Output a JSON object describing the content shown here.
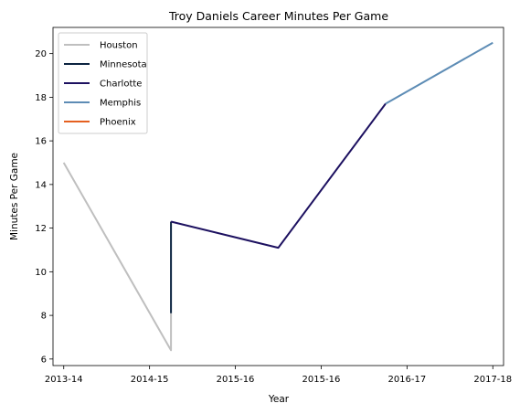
{
  "chart_data": {
    "type": "line",
    "title": "Troy Daniels Career Minutes Per Game",
    "xlabel": "Year",
    "ylabel": "Minutes Per Game",
    "x_tick_labels": [
      "2013-14",
      "2014-15",
      "2015-16",
      "2015-16",
      "2016-17",
      "2017-18"
    ],
    "xlim": [
      -0.1,
      4.1
    ],
    "ylim": [
      5.7,
      21.2
    ],
    "yticks": [
      6,
      8,
      10,
      12,
      14,
      16,
      18,
      20
    ],
    "grid": false,
    "legend_position": "top-left",
    "series": [
      {
        "name": "Houston",
        "color": "#bfbfbf",
        "points": [
          [
            0,
            15.0
          ],
          [
            1,
            6.4
          ],
          [
            1,
            8.1
          ]
        ]
      },
      {
        "name": "Minnesota",
        "color": "#0c2340",
        "points": [
          [
            1,
            8.1
          ],
          [
            1,
            12.3
          ]
        ]
      },
      {
        "name": "Charlotte",
        "color": "#1d1160",
        "points": [
          [
            1,
            12.3
          ],
          [
            2,
            11.1
          ],
          [
            3,
            17.7
          ]
        ]
      },
      {
        "name": "Memphis",
        "color": "#5d8cb5",
        "points": [
          [
            3,
            17.7
          ],
          [
            4,
            20.5
          ]
        ]
      },
      {
        "name": "Phoenix",
        "color": "#e56020",
        "points": []
      }
    ]
  }
}
